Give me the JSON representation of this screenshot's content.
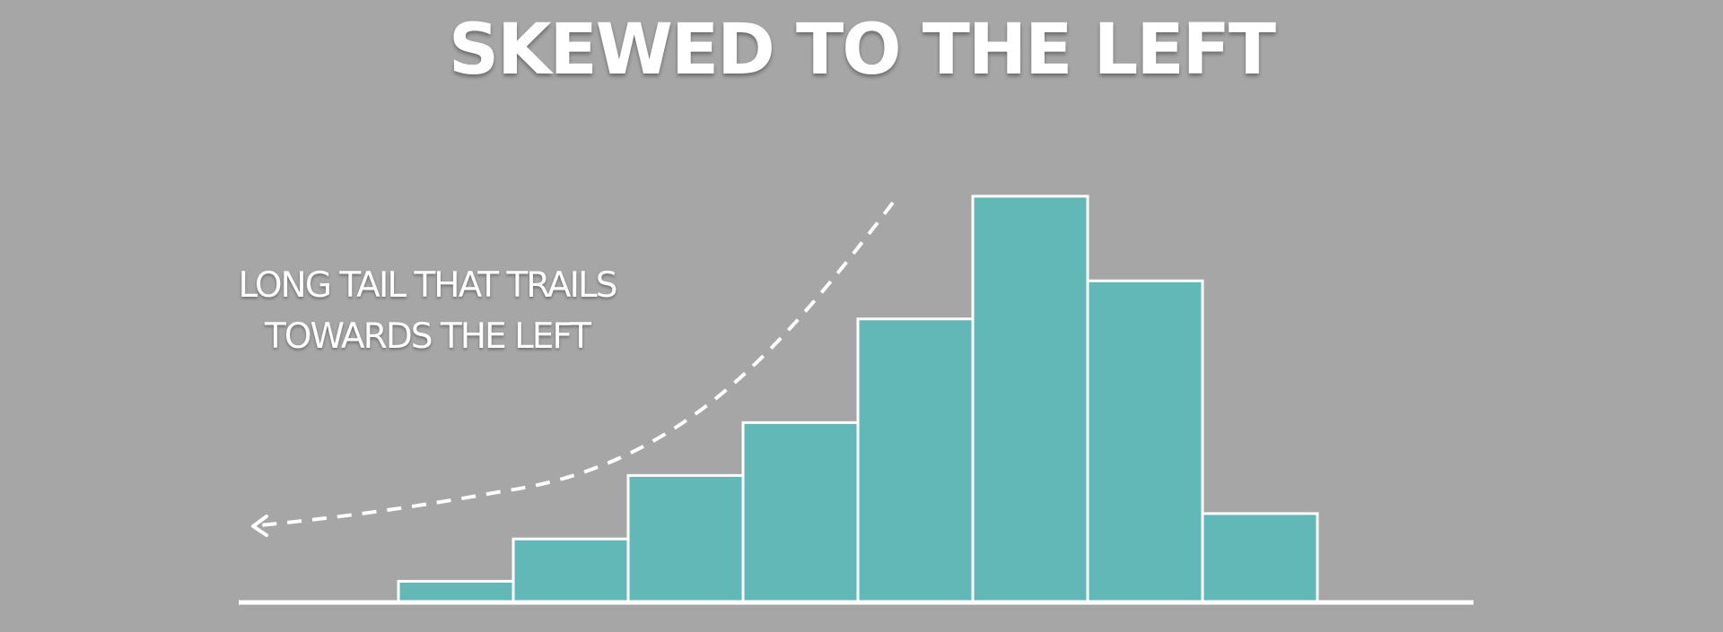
{
  "chart_data": {
    "type": "bar",
    "title": "SKEWED TO THE LEFT",
    "annotation": [
      "LONG TAIL THAT TRAILS",
      "TOWARDS THE LEFT"
    ],
    "values": [
      0.5,
      1.5,
      3.0,
      4.25,
      6.7,
      9.6,
      7.6,
      2.1
    ],
    "ylim": [
      0,
      10
    ],
    "grid": false,
    "legend": "none",
    "colors": {
      "background": "#a6a6a6",
      "bar_fill": "#62b8b6",
      "bar_stroke": "#ffffff",
      "axis": "#ffffff",
      "text": "#ffffff"
    }
  }
}
